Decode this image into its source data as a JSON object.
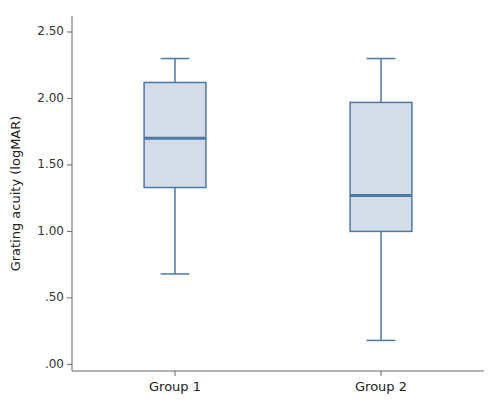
{
  "chart_data": {
    "type": "box",
    "categories": [
      "Group 1",
      "Group 2"
    ],
    "values": [
      {
        "whisker_low": 0.68,
        "q1": 1.33,
        "median": 1.7,
        "q3": 2.12,
        "whisker_high": 2.3
      },
      {
        "whisker_low": 0.18,
        "q1": 1.0,
        "median": 1.27,
        "q3": 1.97,
        "whisker_high": 2.3
      }
    ],
    "ylabel": "Grating acuity (logMAR)",
    "ylim": [
      -0.05,
      2.62
    ],
    "yticks": [
      {
        "value": 0.0,
        "label": ".00"
      },
      {
        "value": 0.5,
        "label": ".50"
      },
      {
        "value": 1.0,
        "label": "1.00"
      },
      {
        "value": 1.5,
        "label": "1.50"
      },
      {
        "value": 2.0,
        "label": "2.00"
      },
      {
        "value": 2.5,
        "label": "2.50"
      }
    ],
    "color": "#4c78a8",
    "grid": false
  }
}
